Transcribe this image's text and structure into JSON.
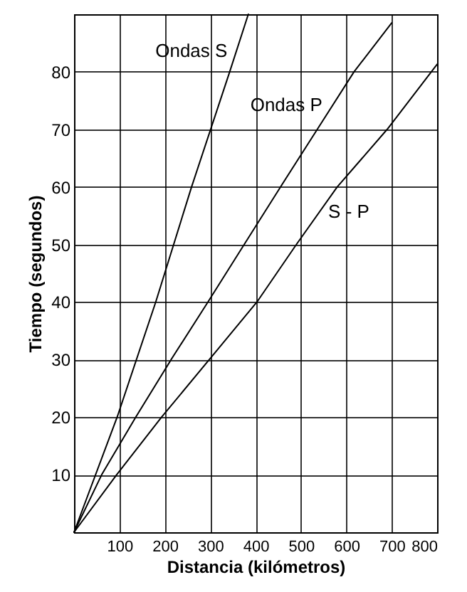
{
  "chart_data": {
    "type": "line",
    "xlabel": "Distancia (kilómetros)",
    "ylabel": "Tiempo (segundos)",
    "xlim": [
      0,
      800
    ],
    "ylim": [
      0,
      90
    ],
    "xticks": [
      100,
      200,
      300,
      400,
      500,
      600,
      700,
      800
    ],
    "yticks": [
      10,
      20,
      30,
      40,
      50,
      60,
      70,
      80
    ],
    "grid": true,
    "marker": "none",
    "line_style": "solid",
    "series": [
      {
        "name": "Ondas S",
        "color": "#000000",
        "x": [
          0,
          95,
          180,
          259,
          343,
          384
        ],
        "values": [
          0,
          20,
          40,
          60,
          80,
          90
        ]
      },
      {
        "name": "Ondas P",
        "color": "#000000",
        "x": [
          0,
          61,
          136,
          214,
          295,
          375,
          455,
          536,
          617,
          700
        ],
        "values": [
          0,
          10,
          20,
          30,
          40,
          50,
          60,
          70,
          80,
          88.5
        ]
      },
      {
        "name": "S - P",
        "color": "#000000",
        "x": [
          0,
          94,
          193,
          298,
          403,
          490,
          580,
          690,
          800
        ],
        "values": [
          0,
          10,
          20,
          30,
          40,
          50,
          60,
          70,
          81.3
        ]
      }
    ]
  }
}
